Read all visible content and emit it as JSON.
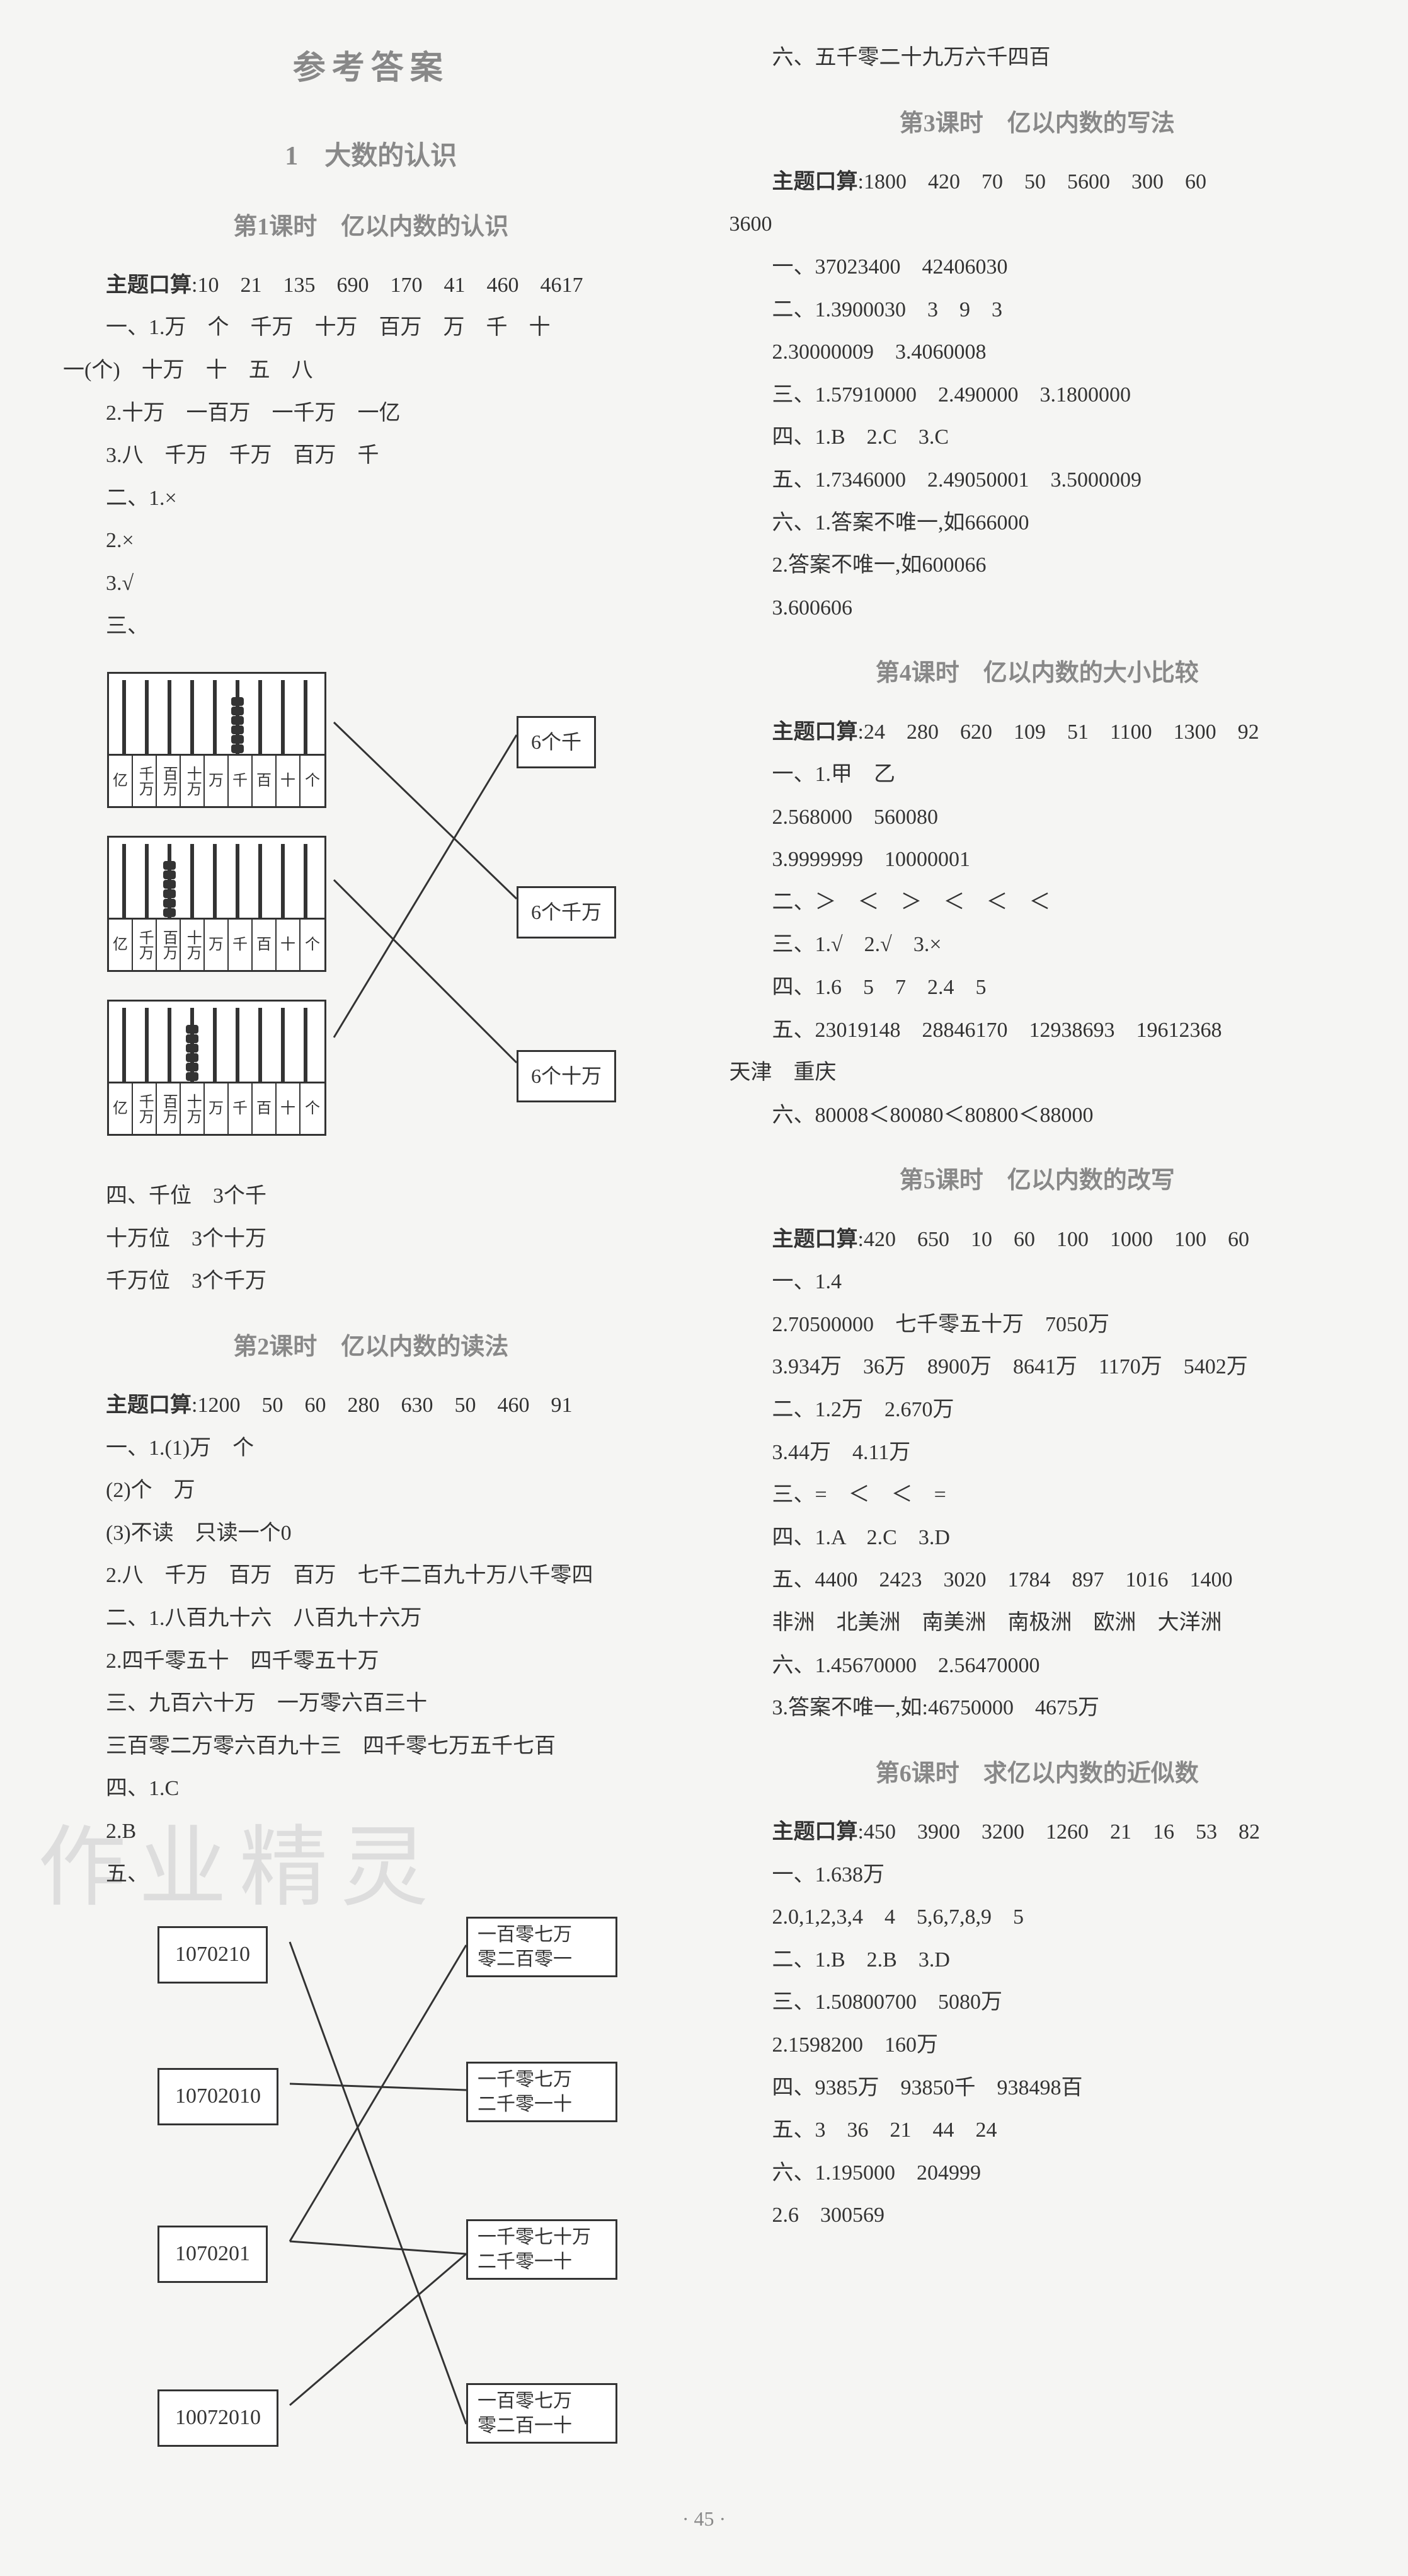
{
  "title": "参考答案",
  "chapter": "1　大数的认识",
  "page_num": "· 45 ·",
  "watermark": "作业精灵",
  "left": {
    "s1_title": "第1课时　亿以内数的认识",
    "s1": [
      "主题口算:10　21　135　690　170　41　460　4617",
      "一、1.万　个　千万　十万　百万　万　千　十",
      "一(个)　十万　十　五　八",
      "2.十万　一百万　一千万　一亿",
      "3.八　千万　千万　百万　千",
      "二、1.×",
      "2.×",
      "3.√",
      "三、"
    ],
    "abacus_places": [
      "亿",
      "千万",
      "百万",
      "十万",
      "万",
      "千",
      "百",
      "十",
      "个"
    ],
    "abacus_data": [
      {
        "beads": [
          0,
          0,
          0,
          0,
          0,
          6,
          0,
          0,
          0
        ]
      },
      {
        "beads": [
          0,
          0,
          6,
          0,
          0,
          0,
          0,
          0,
          0
        ]
      },
      {
        "beads": [
          0,
          0,
          0,
          6,
          0,
          0,
          0,
          0,
          0
        ]
      }
    ],
    "match_labels": [
      "6个千",
      "6个千万",
      "6个十万"
    ],
    "s1b": [
      "四、千位　3个千",
      "十万位　3个十万",
      "千万位　3个千万"
    ],
    "s2_title": "第2课时　亿以内数的读法",
    "s2": [
      "主题口算:1200　50　60　280　630　50　460　91",
      "一、1.(1)万　个",
      "(2)个　万",
      "(3)不读　只读一个0",
      "2.八　千万　百万　百万　七千二百九十万八千零四",
      "二、1.八百九十六　八百九十六万",
      "2.四千零五十　四千零五十万",
      "三、九百六十万　一万零六百三十",
      "三百零二万零六百九十三　四千零七万五千七百",
      "四、1.C",
      "2.B",
      "五、"
    ],
    "num_left": [
      "1070210",
      "10702010",
      "1070201",
      "10072010"
    ],
    "num_right": [
      "一百零七万\n零二百零一",
      "一千零七万\n二千零一十",
      "一千零七十万\n二千零一十",
      "一百零七万\n零二百一十"
    ]
  },
  "right": {
    "r_intro": "六、五千零二十九万六千四百",
    "s3_title": "第3课时　亿以内数的写法",
    "s3": [
      "主题口算:1800　420　70　50　5600　300　60",
      "3600",
      "一、37023400　42406030",
      "二、1.3900030　3　9　3",
      "2.30000009　3.4060008",
      "三、1.57910000　2.490000　3.1800000",
      "四、1.B　2.C　3.C",
      "五、1.7346000　2.49050001　3.5000009",
      "六、1.答案不唯一,如666000",
      "2.答案不唯一,如600066",
      "3.600606"
    ],
    "s4_title": "第4课时　亿以内数的大小比较",
    "s4": [
      "主题口算:24　280　620　109　51　1100　1300　92",
      "一、1.甲　乙",
      "2.568000　560080",
      "3.9999999　10000001",
      "二、＞　＜　＞　＜　＜　＜",
      "三、1.√　2.√　3.×",
      "四、1.6　5　7　2.4　5",
      "五、23019148　28846170　12938693　19612368",
      "天津　重庆",
      "六、80008＜80080＜80800＜88000"
    ],
    "s5_title": "第5课时　亿以内数的改写",
    "s5": [
      "主题口算:420　650　10　60　100　1000　100　60",
      "一、1.4",
      "2.70500000　七千零五十万　7050万",
      "3.934万　36万　8900万　8641万　1170万　5402万",
      "二、1.2万　2.670万",
      "3.44万　4.11万",
      "三、=　＜　＜　=",
      "四、1.A　2.C　3.D",
      "五、4400　2423　3020　1784　897　1016　1400",
      "非洲　北美洲　南美洲　南极洲　欧洲　大洋洲",
      "六、1.45670000　2.56470000",
      "3.答案不唯一,如:46750000　4675万"
    ],
    "s6_title": "第6课时　求亿以内数的近似数",
    "s6": [
      "主题口算:450　3900　3200　1260　21　16　53　82",
      "一、1.638万",
      "2.0,1,2,3,4　4　5,6,7,8,9　5",
      "二、1.B　2.B　3.D",
      "三、1.50800700　5080万",
      "2.1598200　160万",
      "四、9385万　93850千　938498百",
      "五、3　36　21　44　24",
      "六、1.195000　204999",
      "2.6　300569"
    ]
  }
}
